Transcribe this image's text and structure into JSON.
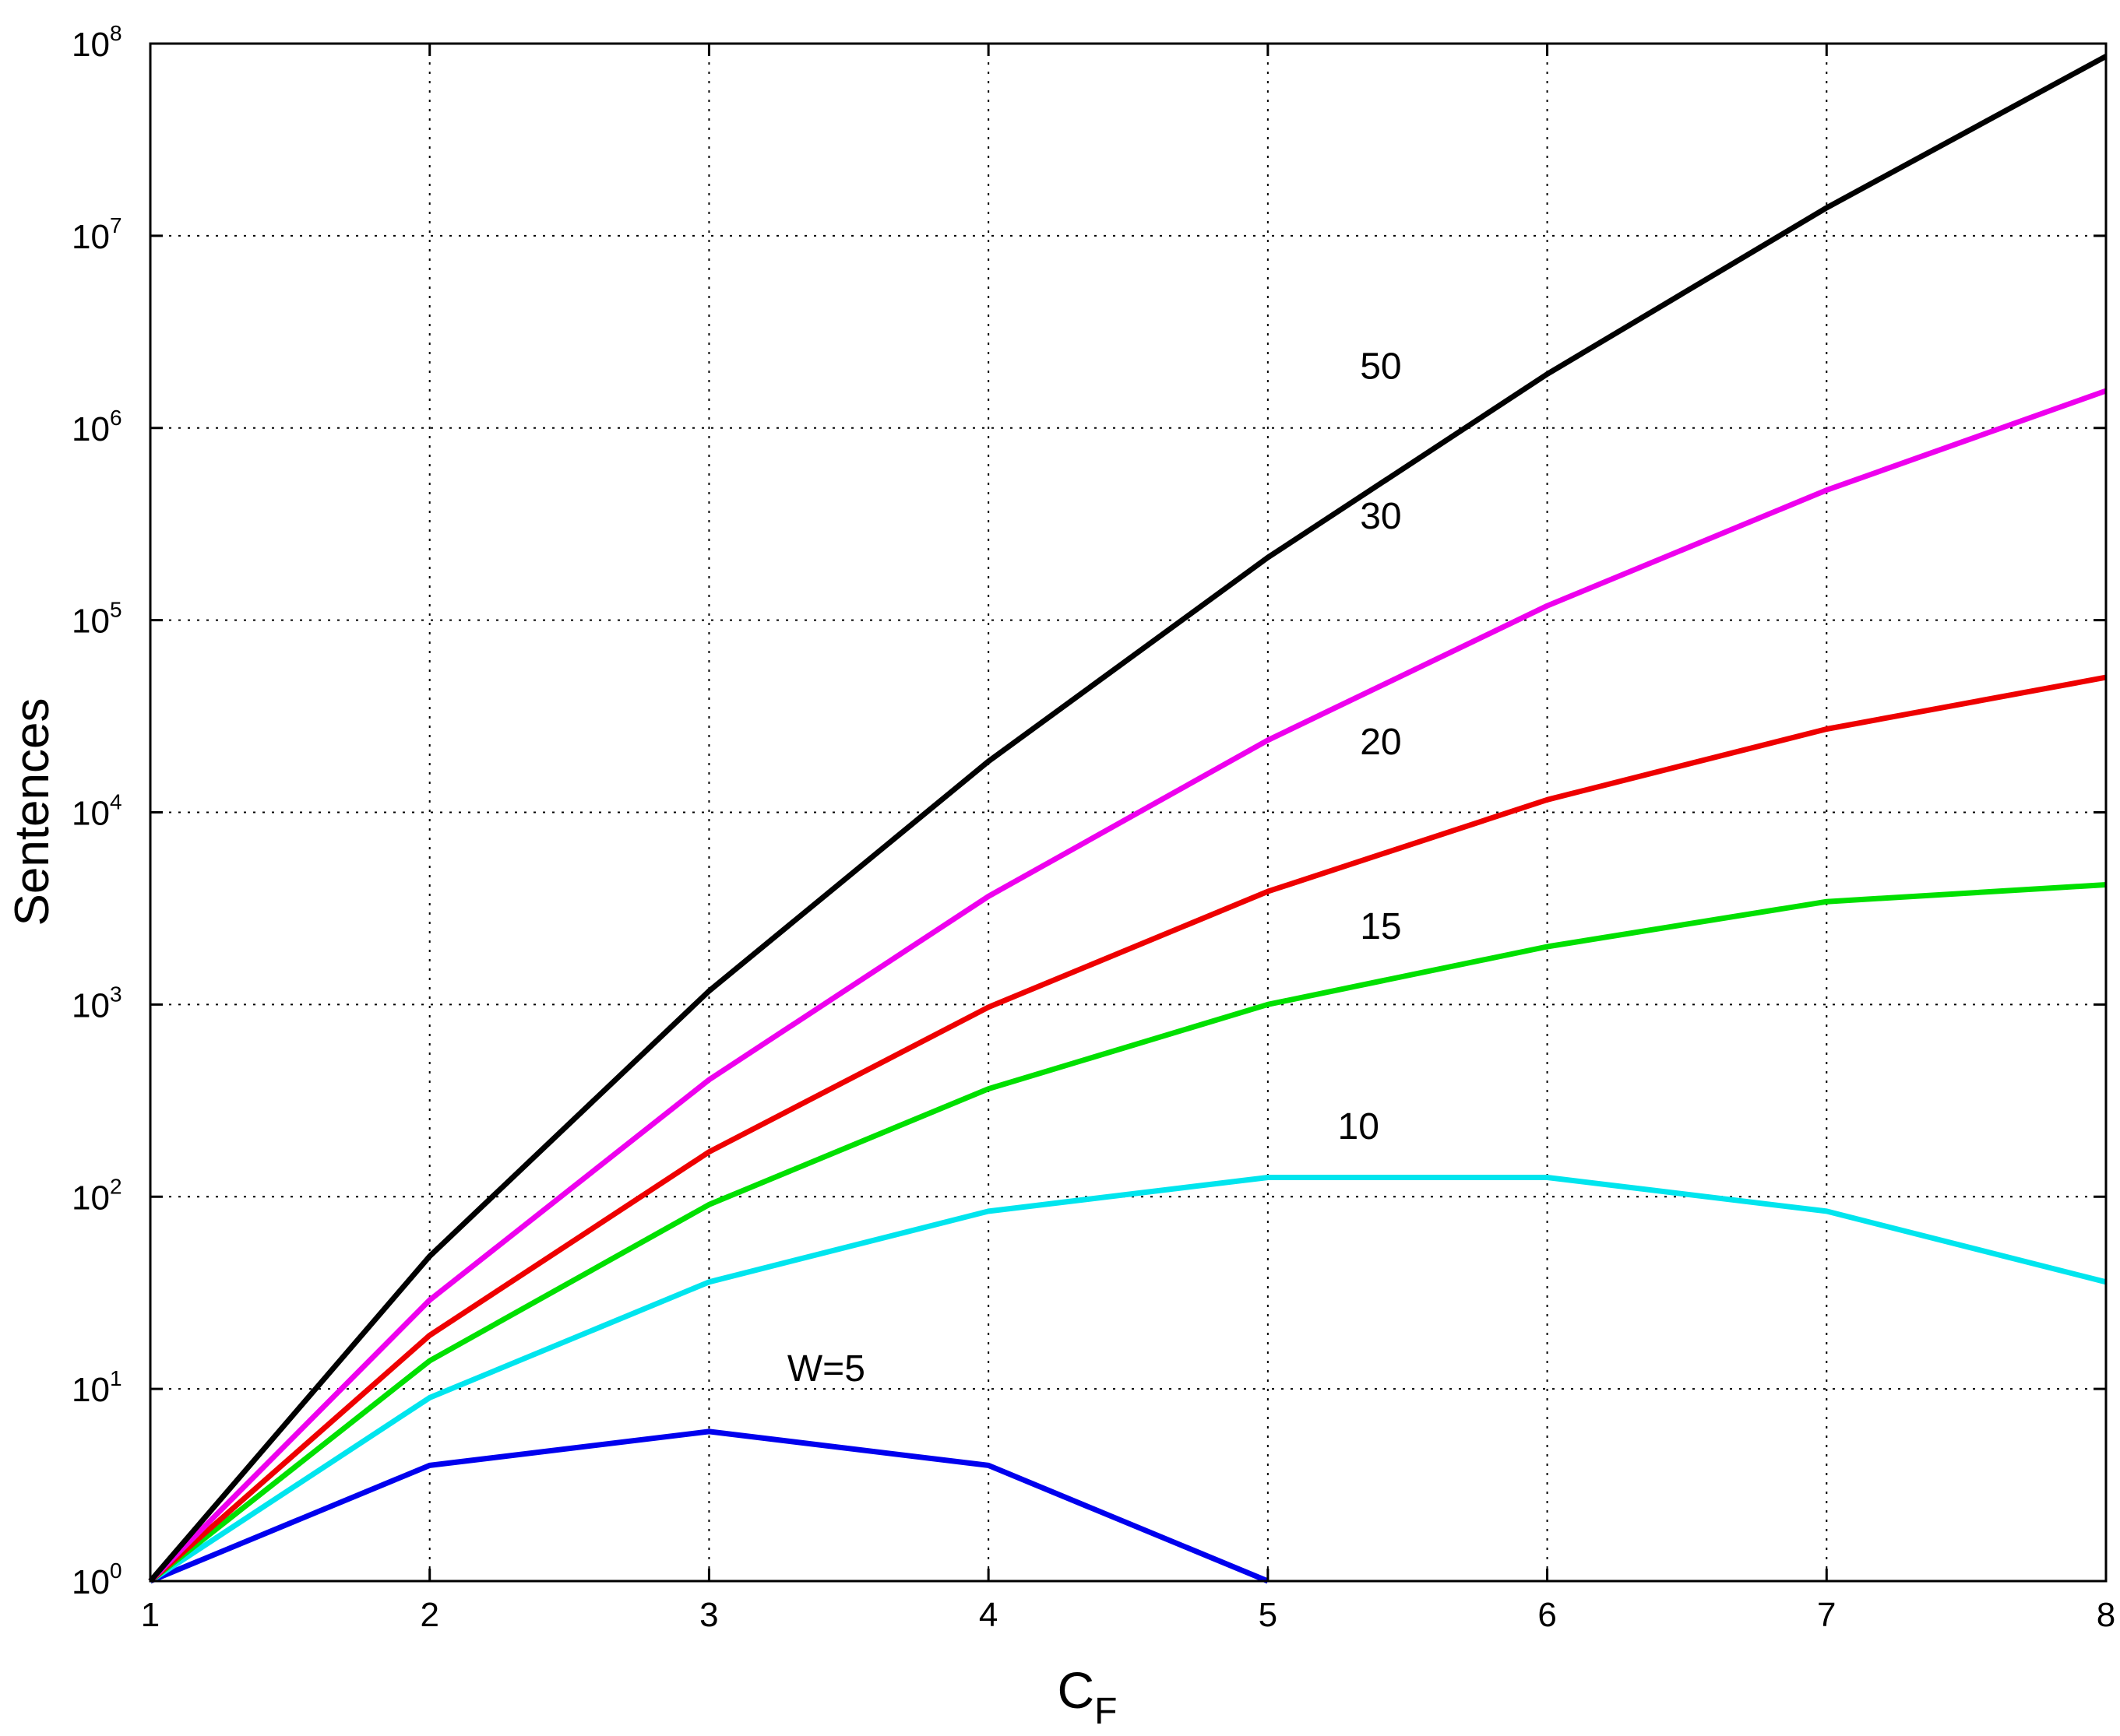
{
  "chart_data": {
    "type": "line",
    "xlabel": "C",
    "xlabel_subscript": "F",
    "ylabel": "Sentences",
    "yscale": "log",
    "xlim": [
      1,
      8
    ],
    "ylim": [
      1,
      100000000
    ],
    "grid": true,
    "x_ticks": [
      "1",
      "2",
      "3",
      "4",
      "5",
      "6",
      "7",
      "8"
    ],
    "y_tick_base": "10",
    "y_tick_exponents": [
      "0",
      "1",
      "2",
      "3",
      "4",
      "5",
      "6",
      "7",
      "8"
    ],
    "series": [
      {
        "name": "W=5",
        "label": "W=5",
        "color": "#0000ee",
        "x": [
          1,
          2,
          3,
          4,
          5
        ],
        "values": [
          1,
          4,
          6,
          4,
          1
        ]
      },
      {
        "name": "10",
        "label": "10",
        "color": "#00e5ee",
        "x": [
          1,
          2,
          3,
          4,
          5,
          6,
          7,
          8
        ],
        "values": [
          1,
          9,
          36,
          84,
          126,
          126,
          84,
          36
        ]
      },
      {
        "name": "15",
        "label": "15",
        "color": "#00e000",
        "x": [
          1,
          2,
          3,
          4,
          5,
          6,
          7,
          8
        ],
        "values": [
          1,
          14,
          91,
          364,
          1001,
          2002,
          3432,
          4200
        ]
      },
      {
        "name": "20",
        "label": "20",
        "color": "#ee0000",
        "x": [
          1,
          2,
          3,
          4,
          5,
          6,
          7,
          8
        ],
        "values": [
          1,
          19,
          171,
          969,
          3876,
          11628,
          27132,
          50388
        ]
      },
      {
        "name": "30",
        "label": "30",
        "color": "#ee00ee",
        "x": [
          1,
          2,
          3,
          4,
          5,
          6,
          7,
          8
        ],
        "values": [
          1,
          29,
          406,
          3654,
          23751,
          118755,
          475020,
          1560780
        ]
      },
      {
        "name": "50",
        "label": "50",
        "color": "#000000",
        "x": [
          1,
          2,
          3,
          4,
          5,
          6,
          7,
          8
        ],
        "values": [
          1,
          49,
          1176,
          18424,
          211876,
          1906884,
          13983816,
          85900584
        ]
      }
    ]
  }
}
